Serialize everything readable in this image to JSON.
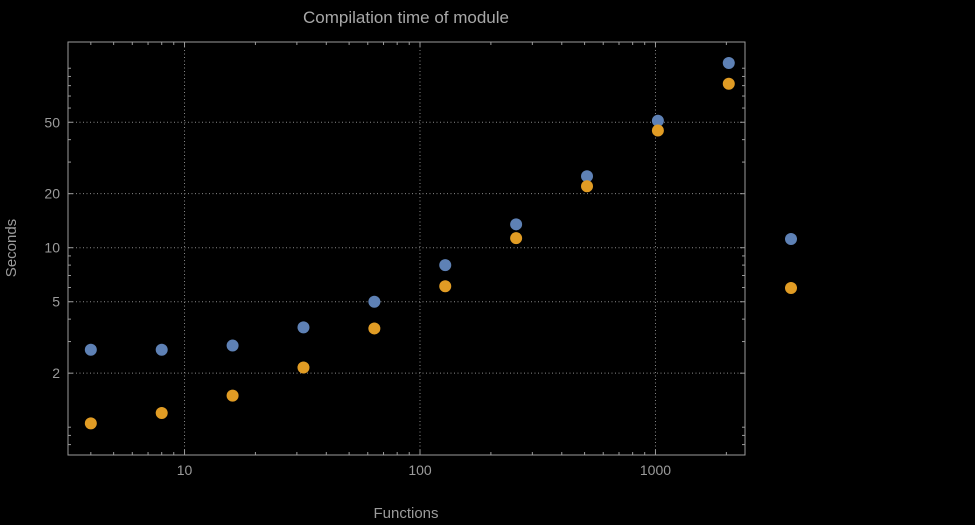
{
  "chart_data": {
    "type": "scatter",
    "title": "Compilation time of module",
    "xlabel": "Functions",
    "ylabel": "Seconds",
    "x_scale": "log",
    "y_scale": "log",
    "xlim": [
      3.2,
      2400
    ],
    "ylim": [
      0.7,
      140
    ],
    "x_ticks": [
      10,
      100,
      1000
    ],
    "x_tick_labels": [
      "10",
      "100",
      "1000"
    ],
    "y_ticks": [
      2,
      5,
      10,
      20,
      50
    ],
    "y_tick_labels": [
      "2",
      "5",
      "10",
      "20",
      "50"
    ],
    "grid": "dotted",
    "legend_position": "right",
    "series": [
      {
        "name": "blue-series",
        "color": "#5e81b5",
        "points": [
          [
            4,
            2.7
          ],
          [
            8,
            2.7
          ],
          [
            16,
            2.85
          ],
          [
            32,
            3.6
          ],
          [
            64,
            5.0
          ],
          [
            128,
            8.0
          ],
          [
            256,
            13.5
          ],
          [
            512,
            25
          ],
          [
            1024,
            51
          ],
          [
            2048,
            107
          ]
        ]
      },
      {
        "name": "orange-series",
        "color": "#e19c24",
        "points": [
          [
            4,
            1.05
          ],
          [
            8,
            1.2
          ],
          [
            16,
            1.5
          ],
          [
            32,
            2.15
          ],
          [
            64,
            3.55
          ],
          [
            128,
            6.1
          ],
          [
            256,
            11.3
          ],
          [
            512,
            22
          ],
          [
            1024,
            45
          ],
          [
            2048,
            82
          ]
        ]
      }
    ],
    "legend_markers": [
      {
        "name": "blue-series-marker",
        "color": "#5e81b5"
      },
      {
        "name": "orange-series-marker",
        "color": "#e19c24"
      }
    ]
  },
  "colors": {
    "background": "#000000",
    "frame": "#9b9b9b",
    "grid": "#8a8a8a",
    "text": "#9b9b9b"
  }
}
